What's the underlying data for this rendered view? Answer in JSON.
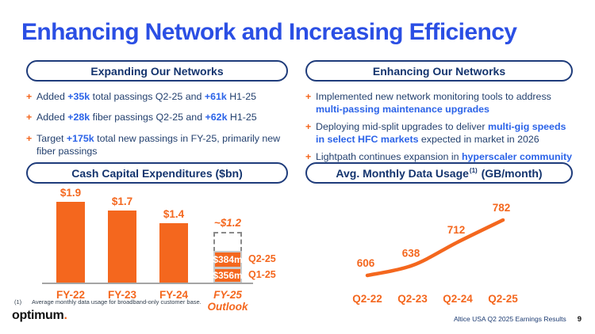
{
  "slide": {
    "title": "Enhancing Network and Increasing Efficiency",
    "footnote_marker": "(1)",
    "footnote_text": "Average monthly data usage for broadband-only customer base.",
    "logo_text": "optimum",
    "logo_dot": ".",
    "footer_text": "Altice USA Q2 2025 Earnings Results",
    "page_number": "9"
  },
  "ui": {
    "bullet_marker": "+"
  },
  "colors": {
    "title_blue": "#2B4FE4",
    "navy": "#14346E",
    "body_navy": "#24416F",
    "highlight_blue": "#2B63E8",
    "orange": "#F4671E",
    "axis_gray": "#A5A5A5",
    "dashed_gray": "#8A8A8A"
  },
  "sections": {
    "expanding": {
      "header": "Expanding Our Networks",
      "bullets": [
        [
          {
            "text": "Added ",
            "bold": false
          },
          {
            "text": "+35k",
            "bold": true
          },
          {
            "text": " total passings Q2-25 and ",
            "bold": false
          },
          {
            "text": "+61k",
            "bold": true
          },
          {
            "text": " H1-25",
            "bold": false
          }
        ],
        [
          {
            "text": "Added ",
            "bold": false
          },
          {
            "text": "+28k",
            "bold": true
          },
          {
            "text": " fiber passings Q2-25 and ",
            "bold": false
          },
          {
            "text": "+62k",
            "bold": true
          },
          {
            "text": " H1-25",
            "bold": false
          }
        ],
        [
          {
            "text": "Target ",
            "bold": false
          },
          {
            "text": "+175k",
            "bold": true
          },
          {
            "text": " total new passings in FY-25, primarily new fiber passings",
            "bold": false
          }
        ]
      ]
    },
    "enhancing": {
      "header": "Enhancing Our Networks",
      "bullets": [
        [
          {
            "text": "Implemented new network monitoring tools to address ",
            "bold": false
          },
          {
            "text": "multi-passing maintenance upgrades",
            "bold": true
          }
        ],
        [
          {
            "text": "Deploying mid-split upgrades to deliver ",
            "bold": false
          },
          {
            "text": "multi-gig speeds in select HFC markets",
            "bold": true
          },
          {
            "text": " expected in market in 2026",
            "bold": false
          }
        ],
        [
          {
            "text": "Lightpath continues expansion in ",
            "bold": false
          },
          {
            "text": "hyperscaler community",
            "bold": true
          }
        ]
      ]
    }
  },
  "chart_headers": {
    "capex": "Cash Capital Expenditures ($bn)",
    "usage_prefix": "Avg. Monthly Data Usage",
    "usage_sup": "(1)",
    "usage_suffix": "(GB/month)"
  },
  "chart_data": [
    {
      "type": "bar",
      "title": "Cash Capital Expenditures ($bn)",
      "categories": [
        "FY-22",
        "FY-23",
        "FY-24",
        "FY-25 Outlook"
      ],
      "values": [
        1.9,
        1.7,
        1.4,
        1.2
      ],
      "value_labels": [
        "$1.9",
        "$1.7",
        "$1.4",
        "~$1.2"
      ],
      "ylim": [
        0,
        2.0
      ],
      "bar_color": "#F4671E",
      "outlook": {
        "axis_label_lines": [
          "FY-25",
          "Outlook"
        ],
        "total_label": "~$1.2",
        "total_value": 1.2,
        "is_estimate": true,
        "segments": [
          {
            "label": "$356m",
            "value": 0.356,
            "period": "Q1-25"
          },
          {
            "label": "$384m",
            "value": 0.384,
            "period": "Q2-25"
          }
        ]
      }
    },
    {
      "type": "line",
      "title": "Avg. Monthly Data Usage (GB/month)",
      "categories": [
        "Q2-22",
        "Q2-23",
        "Q2-24",
        "Q2-25"
      ],
      "values": [
        606,
        638,
        712,
        782
      ],
      "line_color": "#F4671E",
      "grid": false,
      "legend": false
    }
  ]
}
